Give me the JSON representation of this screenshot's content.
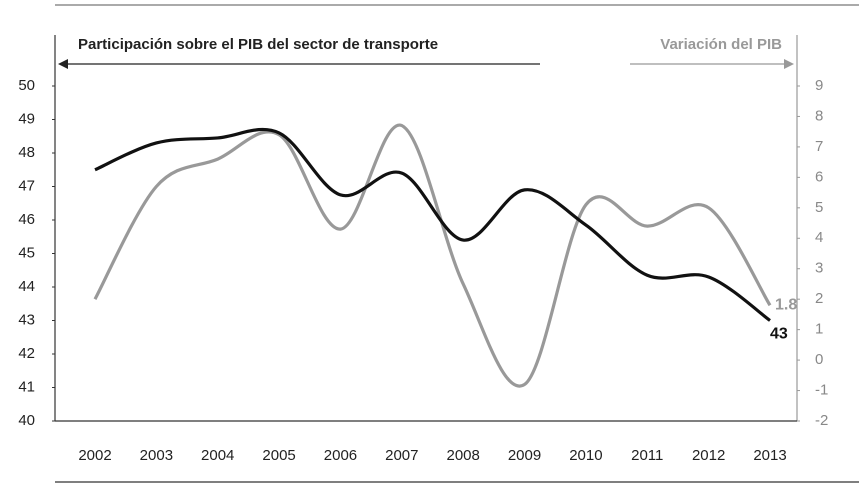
{
  "chart_data": {
    "type": "line",
    "categories": [
      "2002",
      "2003",
      "2004",
      "2005",
      "2006",
      "2007",
      "2008",
      "2009",
      "2010",
      "2011",
      "2012",
      "2013"
    ],
    "series": [
      {
        "name": "Participación sobre el PIB del sector de transporte",
        "color": "#111111",
        "values": [
          47.5,
          48.3,
          48.45,
          48.6,
          46.75,
          47.4,
          45.4,
          46.9,
          45.85,
          44.35,
          44.3,
          43
        ]
      },
      {
        "name": "Variación del PIB",
        "color": "#999999",
        "axis": "y2",
        "values": [
          2.0,
          5.7,
          6.6,
          7.4,
          4.3,
          7.7,
          2.5,
          -0.8,
          5.1,
          4.4,
          5.0,
          1.8
        ]
      }
    ],
    "ylim": [
      40,
      50
    ],
    "yticks": [
      40,
      41,
      42,
      43,
      44,
      45,
      46,
      47,
      48,
      49,
      50
    ],
    "y2lim": [
      -2,
      9
    ],
    "y2ticks": [
      -2,
      -1,
      0,
      1,
      2,
      3,
      4,
      5,
      6,
      7,
      8,
      9
    ]
  }
}
